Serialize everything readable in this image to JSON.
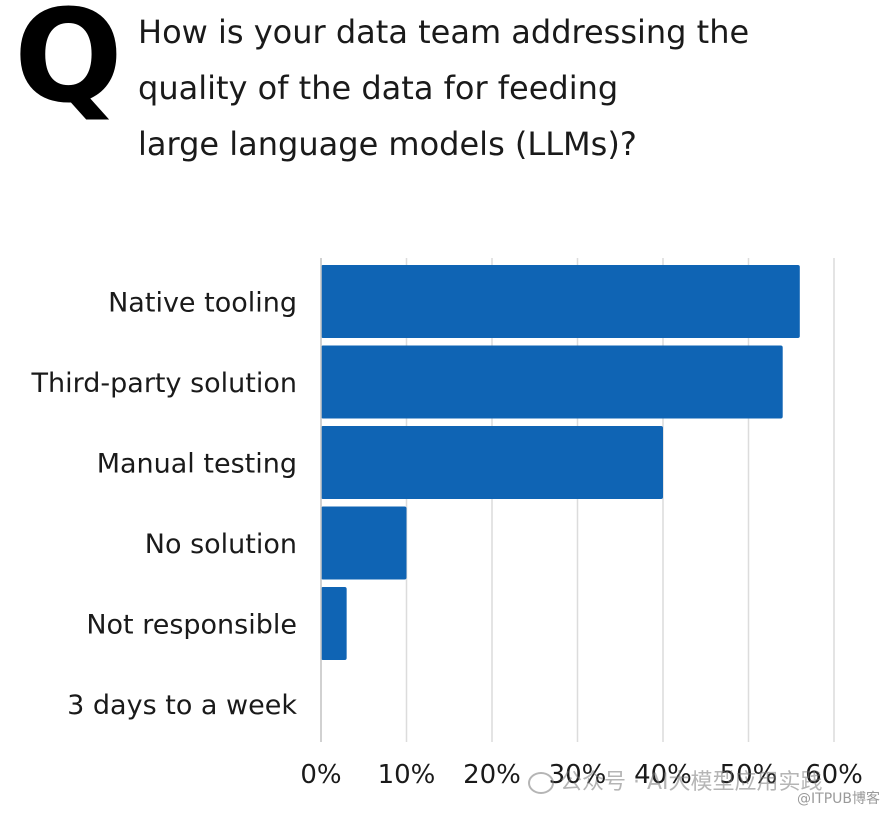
{
  "header": {
    "q_mark": "Q",
    "question": "How is your data team addressing the\nquality of the data for feeding\nlarge language models (LLMs)?"
  },
  "chart_data": {
    "type": "bar",
    "orientation": "horizontal",
    "categories": [
      "Native tooling",
      "Third-party solution",
      "Manual testing",
      "No solution",
      "Not responsible",
      "3 days to a week"
    ],
    "values": [
      56,
      54,
      40,
      10,
      3,
      0
    ],
    "unit": "%",
    "xlim": [
      0,
      60
    ],
    "xticks": [
      "0%",
      "10%",
      "20%",
      "30%",
      "40%",
      "50%",
      "60%"
    ],
    "grid": true,
    "bar_color": "#0f64b4",
    "grid_color": "#dcdcdc"
  },
  "watermark": {
    "text": "公众号 · AI大模型应用实践"
  },
  "credit": {
    "text": "@ITPUB博客"
  }
}
